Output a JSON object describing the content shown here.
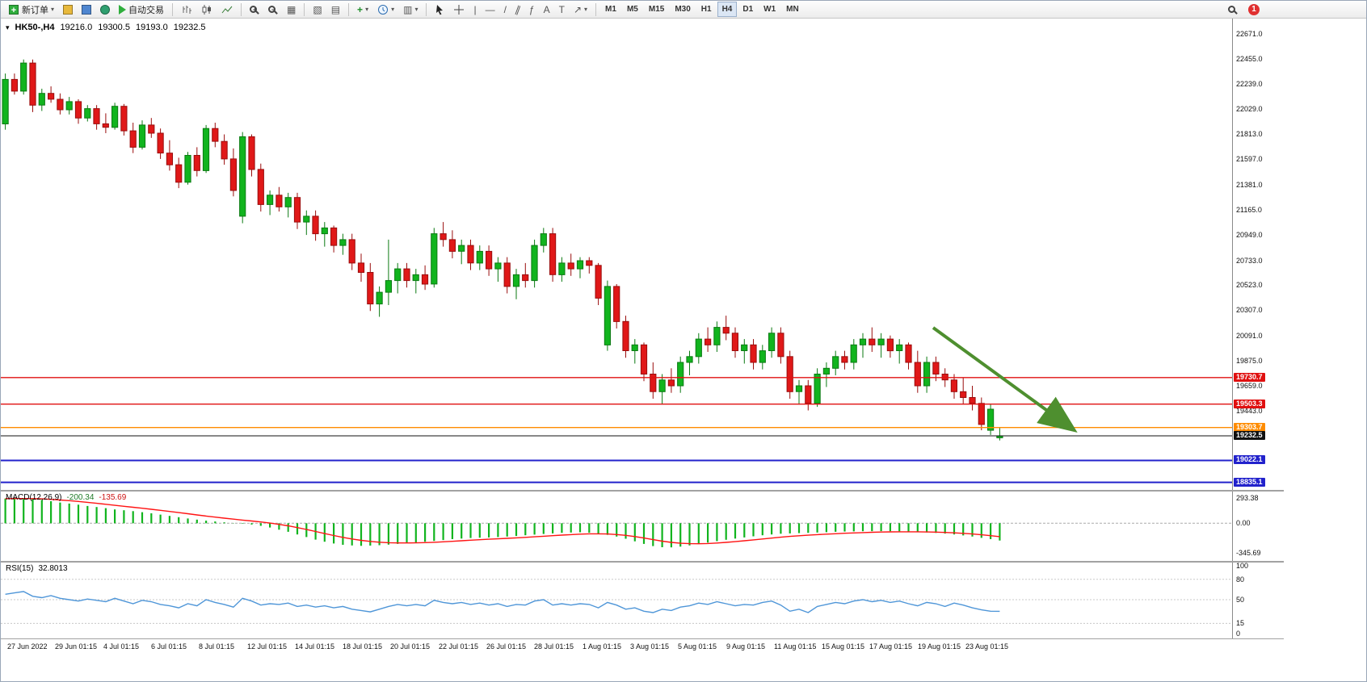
{
  "toolbar": {
    "new_order_label": "新订单",
    "auto_trading_label": "自动交易",
    "timeframes": [
      "M1",
      "M5",
      "M15",
      "M30",
      "H1",
      "H4",
      "D1",
      "W1",
      "MN"
    ],
    "active_timeframe": "H4",
    "notification_count": "1"
  },
  "chart": {
    "symbol_timeframe": "HK50-,H4",
    "ohlc": {
      "open": "19216.0",
      "high": "19300.5",
      "low": "19193.0",
      "close": "19232.5"
    },
    "price_axis": [
      "22671.0",
      "22455.0",
      "22239.0",
      "22029.0",
      "21813.0",
      "21597.0",
      "21381.0",
      "21165.0",
      "20949.0",
      "20733.0",
      "20523.0",
      "20307.0",
      "20091.0",
      "19875.0",
      "19659.0",
      "19443.0"
    ],
    "levels": [
      {
        "label": "19730.7",
        "value": 19730.7,
        "color": "#e01010",
        "type": "resistance-line"
      },
      {
        "label": "19503.3",
        "value": 19503.3,
        "color": "#e01010",
        "type": "resistance-line"
      },
      {
        "label": "19303.7",
        "value": 19303.7,
        "color": "#ff8c00",
        "type": "support-line"
      },
      {
        "label": "19232.5",
        "value": 19232.5,
        "color": "#111111",
        "type": "current-price"
      },
      {
        "label": "19022.1",
        "value": 19022.1,
        "color": "#2222cc",
        "type": "support-line"
      },
      {
        "label": "18835.1",
        "value": 18835.1,
        "color": "#2222cc",
        "type": "support-line"
      }
    ],
    "time_axis": [
      "27 Jun 2022",
      "29 Jun 01:15",
      "4 Jul 01:15",
      "6 Jul 01:15",
      "8 Jul 01:15",
      "12 Jul 01:15",
      "14 Jul 01:15",
      "18 Jul 01:15",
      "20 Jul 01:15",
      "22 Jul 01:15",
      "26 Jul 01:15",
      "28 Jul 01:15",
      "1 Aug 01:15",
      "3 Aug 01:15",
      "5 Aug 01:15",
      "9 Aug 01:15",
      "11 Aug 01:15",
      "15 Aug 01:15",
      "17 Aug 01:15",
      "19 Aug 01:15",
      "23 Aug 01:15"
    ]
  },
  "macd": {
    "name": "MACD(12,26,9)",
    "value": "-200.34",
    "signal_value": "-135.69",
    "axis": [
      "293.38",
      "0.00",
      "-345.69"
    ]
  },
  "rsi": {
    "name": "RSI(15)",
    "value": "32.8013",
    "axis": [
      "100",
      "80",
      "50",
      "15",
      "0"
    ]
  },
  "chart_data": {
    "type": "candlestick",
    "symbol": "HK50-",
    "timeframe": "H4",
    "price_range": [
      18770,
      22800
    ],
    "macd_range": [
      330,
      -400
    ],
    "right_margin_frac": 0.185,
    "colors": {
      "up": "#11b41e",
      "up_border": "#0b7a12",
      "down": "#e01818",
      "down_border": "#9a0d0d",
      "macd_hist": "#11b41e",
      "macd_signal": "#ff1414",
      "rsi": "#4f96d8"
    },
    "candles": [
      [
        21900,
        22330,
        21850,
        22280
      ],
      [
        22280,
        22330,
        22150,
        22180
      ],
      [
        22180,
        22450,
        22150,
        22420
      ],
      [
        22420,
        22450,
        22000,
        22060
      ],
      [
        22060,
        22200,
        22010,
        22160
      ],
      [
        22160,
        22220,
        22080,
        22110
      ],
      [
        22110,
        22160,
        21980,
        22020
      ],
      [
        22020,
        22130,
        21980,
        22090
      ],
      [
        22090,
        22110,
        21900,
        21950
      ],
      [
        21950,
        22060,
        21920,
        22030
      ],
      [
        22030,
        22060,
        21850,
        21900
      ],
      [
        21900,
        21990,
        21820,
        21870
      ],
      [
        21870,
        22080,
        21850,
        22050
      ],
      [
        22050,
        22070,
        21800,
        21840
      ],
      [
        21840,
        21910,
        21650,
        21700
      ],
      [
        21700,
        21930,
        21680,
        21890
      ],
      [
        21890,
        21950,
        21780,
        21820
      ],
      [
        21820,
        21860,
        21600,
        21650
      ],
      [
        21650,
        21760,
        21500,
        21550
      ],
      [
        21550,
        21610,
        21350,
        21400
      ],
      [
        21400,
        21660,
        21380,
        21630
      ],
      [
        21630,
        21700,
        21450,
        21500
      ],
      [
        21500,
        21890,
        21480,
        21860
      ],
      [
        21860,
        21910,
        21700,
        21750
      ],
      [
        21750,
        21810,
        21550,
        21600
      ],
      [
        21600,
        21690,
        21280,
        21330
      ],
      [
        21110,
        21830,
        21050,
        21790
      ],
      [
        21790,
        21810,
        21450,
        21510
      ],
      [
        21510,
        21560,
        21150,
        21210
      ],
      [
        21210,
        21330,
        21120,
        21290
      ],
      [
        21290,
        21360,
        21150,
        21190
      ],
      [
        21190,
        21310,
        21100,
        21270
      ],
      [
        21270,
        21310,
        21000,
        21060
      ],
      [
        21060,
        21160,
        20950,
        21110
      ],
      [
        21110,
        21160,
        20900,
        20960
      ],
      [
        20960,
        21060,
        20850,
        21010
      ],
      [
        21010,
        21030,
        20800,
        20860
      ],
      [
        20860,
        20960,
        20780,
        20910
      ],
      [
        20910,
        20960,
        20650,
        20710
      ],
      [
        20710,
        20790,
        20550,
        20630
      ],
      [
        20630,
        20710,
        20300,
        20360
      ],
      [
        20360,
        20510,
        20250,
        20460
      ],
      [
        20460,
        20910,
        20350,
        20560
      ],
      [
        20560,
        20710,
        20450,
        20660
      ],
      [
        20660,
        20710,
        20500,
        20560
      ],
      [
        20560,
        20660,
        20450,
        20610
      ],
      [
        20610,
        20690,
        20480,
        20530
      ],
      [
        20530,
        21010,
        20500,
        20960
      ],
      [
        20960,
        21060,
        20850,
        20910
      ],
      [
        20910,
        20990,
        20750,
        20810
      ],
      [
        20810,
        20910,
        20700,
        20860
      ],
      [
        20860,
        20910,
        20650,
        20710
      ],
      [
        20710,
        20860,
        20650,
        20810
      ],
      [
        20810,
        20860,
        20600,
        20660
      ],
      [
        20660,
        20760,
        20550,
        20710
      ],
      [
        20710,
        20760,
        20450,
        20510
      ],
      [
        20510,
        20660,
        20400,
        20610
      ],
      [
        20610,
        20710,
        20500,
        20560
      ],
      [
        20560,
        20910,
        20500,
        20860
      ],
      [
        20860,
        21010,
        20800,
        20960
      ],
      [
        20960,
        21010,
        20550,
        20610
      ],
      [
        20610,
        20760,
        20550,
        20710
      ],
      [
        20710,
        20790,
        20600,
        20660
      ],
      [
        20660,
        20760,
        20580,
        20730
      ],
      [
        20730,
        20760,
        20620,
        20690
      ],
      [
        20690,
        20710,
        20350,
        20410
      ],
      [
        20010,
        20560,
        19960,
        20510
      ],
      [
        20510,
        20530,
        20150,
        20210
      ],
      [
        20210,
        20260,
        19900,
        19960
      ],
      [
        19960,
        20060,
        19850,
        20010
      ],
      [
        20010,
        20030,
        19700,
        19760
      ],
      [
        19760,
        19860,
        19550,
        19610
      ],
      [
        19610,
        19760,
        19500,
        19710
      ],
      [
        19710,
        19810,
        19600,
        19660
      ],
      [
        19660,
        19910,
        19600,
        19860
      ],
      [
        19860,
        19960,
        19750,
        19910
      ],
      [
        19910,
        20110,
        19850,
        20060
      ],
      [
        20060,
        20160,
        19950,
        20010
      ],
      [
        20010,
        20210,
        19950,
        20160
      ],
      [
        20160,
        20260,
        20050,
        20110
      ],
      [
        20110,
        20160,
        19900,
        19960
      ],
      [
        19960,
        20060,
        19850,
        20010
      ],
      [
        20010,
        20060,
        19800,
        19860
      ],
      [
        19860,
        20010,
        19800,
        19960
      ],
      [
        19960,
        20160,
        19900,
        20110
      ],
      [
        20110,
        20160,
        19850,
        19910
      ],
      [
        19910,
        19960,
        19550,
        19610
      ],
      [
        19610,
        19710,
        19500,
        19660
      ],
      [
        19660,
        19710,
        19450,
        19510
      ],
      [
        19510,
        19810,
        19480,
        19760
      ],
      [
        19760,
        19860,
        19650,
        19810
      ],
      [
        19810,
        19960,
        19750,
        19910
      ],
      [
        19910,
        19960,
        19800,
        19860
      ],
      [
        19860,
        20060,
        19800,
        20010
      ],
      [
        20010,
        20110,
        19900,
        20060
      ],
      [
        20060,
        20160,
        19950,
        20010
      ],
      [
        20010,
        20110,
        19900,
        20060
      ],
      [
        20060,
        20090,
        19900,
        19960
      ],
      [
        19960,
        20060,
        19850,
        20010
      ],
      [
        20010,
        20030,
        19800,
        19860
      ],
      [
        19860,
        19960,
        19600,
        19660
      ],
      [
        19660,
        19910,
        19600,
        19860
      ],
      [
        19860,
        19910,
        19700,
        19760
      ],
      [
        19760,
        19810,
        19650,
        19710
      ],
      [
        19710,
        19760,
        19550,
        19610
      ],
      [
        19610,
        19730,
        19500,
        19560
      ],
      [
        19560,
        19660,
        19450,
        19510
      ],
      [
        19510,
        19560,
        19280,
        19330
      ],
      [
        19280,
        19500,
        19240,
        19460
      ],
      [
        19216,
        19300.5,
        19193,
        19232.5
      ]
    ],
    "macd_hist": [
      285,
      290,
      288,
      282,
      270,
      255,
      240,
      228,
      215,
      200,
      188,
      175,
      160,
      150,
      140,
      128,
      115,
      100,
      85,
      70,
      55,
      42,
      30,
      20,
      10,
      2,
      -6,
      -15,
      -30,
      -50,
      -75,
      -100,
      -130,
      -160,
      -190,
      -215,
      -235,
      -250,
      -258,
      -262,
      -260,
      -255,
      -248,
      -240,
      -230,
      -222,
      -215,
      -205,
      -195,
      -185,
      -178,
      -172,
      -168,
      -165,
      -160,
      -155,
      -148,
      -140,
      -132,
      -125,
      -118,
      -112,
      -108,
      -105,
      -110,
      -120,
      -135,
      -155,
      -180,
      -210,
      -240,
      -265,
      -278,
      -280,
      -272,
      -258,
      -242,
      -225,
      -208,
      -192,
      -178,
      -165,
      -152,
      -140,
      -130,
      -122,
      -118,
      -115,
      -112,
      -108,
      -104,
      -100,
      -97,
      -95,
      -93,
      -92,
      -92,
      -93,
      -95,
      -98,
      -102,
      -107,
      -113,
      -120,
      -130,
      -142,
      -155,
      -170,
      -185,
      -200.34
    ],
    "rsi_values": [
      58,
      60,
      62,
      55,
      53,
      56,
      52,
      50,
      48,
      51,
      49,
      47,
      52,
      48,
      44,
      49,
      47,
      43,
      41,
      38,
      44,
      41,
      50,
      46,
      43,
      39,
      52,
      48,
      42,
      44,
      43,
      45,
      40,
      42,
      39,
      41,
      38,
      40,
      36,
      34,
      32,
      36,
      40,
      43,
      41,
      43,
      41,
      49,
      46,
      44,
      46,
      43,
      45,
      42,
      44,
      40,
      43,
      42,
      48,
      50,
      42,
      44,
      42,
      44,
      43,
      38,
      46,
      42,
      36,
      38,
      33,
      31,
      36,
      34,
      39,
      41,
      45,
      43,
      47,
      44,
      41,
      43,
      42,
      46,
      48,
      42,
      33,
      36,
      31,
      40,
      43,
      46,
      44,
      48,
      50,
      47,
      49,
      46,
      48,
      44,
      41,
      46,
      44,
      40,
      45,
      42,
      38,
      35,
      33,
      32.8
    ],
    "trend_arrow": {
      "from": {
        "x_frac": 0.757,
        "price": 20160
      },
      "to": {
        "x_frac": 0.868,
        "price": 19310
      },
      "color": "#4e8f2f"
    },
    "indicators": [
      {
        "name": "MACD",
        "params": [
          12,
          26,
          9
        ],
        "last_value": -200.34,
        "last_signal": -135.69
      },
      {
        "name": "RSI",
        "params": [
          15
        ],
        "last_value": 32.8013
      }
    ]
  }
}
